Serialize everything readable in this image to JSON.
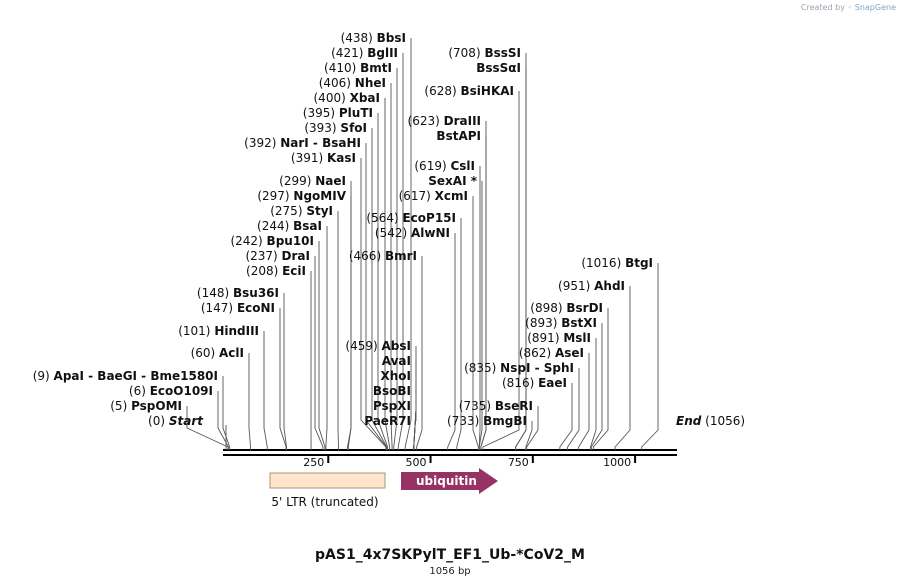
{
  "brand": {
    "prefix": "Created by",
    "name": "SnapGene",
    "icon": "snapgene-logo-icon"
  },
  "plasmid": {
    "name": "pAS1_4x7SKPylT_EF1_Ub-*CoV2_M",
    "length_label": "1056 bp",
    "length": 1056
  },
  "axis": {
    "ticks": [
      250,
      500,
      750,
      1000
    ]
  },
  "features": [
    {
      "name": "5' LTR (truncated)",
      "start": 115,
      "end": 385,
      "type": "box",
      "color": "#fde6cc",
      "label_pos": "below"
    },
    {
      "name": "ubiquitin",
      "start": 418,
      "end": 646,
      "type": "arrow",
      "color": "#963264",
      "label_pos": "inside"
    }
  ],
  "sites": [
    {
      "pos": "(0)",
      "name": "Start",
      "italic": true,
      "bp": 0
    },
    {
      "pos": "(5)",
      "name": "PspOMI",
      "bp": 5
    },
    {
      "pos": "(6)",
      "name": "EcoO109I",
      "bp": 6
    },
    {
      "pos": "(9)",
      "name": "ApaI  -  BaeGI  -  Bme1580I",
      "bp": 9
    },
    {
      "pos": "(60)",
      "name": "AclI",
      "bp": 60
    },
    {
      "pos": "(101)",
      "name": "HindIII",
      "bp": 101
    },
    {
      "pos": "(147)",
      "name": "EcoNI",
      "bp": 147
    },
    {
      "pos": "(148)",
      "name": "Bsu36I",
      "bp": 148
    },
    {
      "pos": "(208)",
      "name": "EciI",
      "bp": 208
    },
    {
      "pos": "(237)",
      "name": "DraI",
      "bp": 237
    },
    {
      "pos": "(242)",
      "name": "Bpu10I",
      "bp": 242
    },
    {
      "pos": "(244)",
      "name": "BsaI",
      "bp": 244
    },
    {
      "pos": "(275)",
      "name": "StyI",
      "bp": 275
    },
    {
      "pos": "(297)",
      "name": "NgoMIV",
      "bp": 297
    },
    {
      "pos": "(299)",
      "name": "NaeI",
      "bp": 299
    },
    {
      "pos": "(391)",
      "name": "KasI",
      "bp": 391
    },
    {
      "pos": "(392)",
      "name": "NarI  -  BsaHI",
      "bp": 392
    },
    {
      "pos": "(393)",
      "name": "SfoI",
      "bp": 393
    },
    {
      "pos": "(395)",
      "name": "PluTI",
      "bp": 395
    },
    {
      "pos": "(400)",
      "name": "XbaI",
      "bp": 400
    },
    {
      "pos": "(406)",
      "name": "NheI",
      "bp": 406
    },
    {
      "pos": "(410)",
      "name": "BmtI",
      "bp": 410
    },
    {
      "pos": "(421)",
      "name": "BglII",
      "bp": 421
    },
    {
      "pos": "(438)",
      "name": "BbsI",
      "bp": 438
    },
    {
      "pos": "(459)",
      "name": "AbsI",
      "bp": 459
    },
    {
      "pos": "",
      "name": "AvaI",
      "bp": 459
    },
    {
      "pos": "",
      "name": "XhoI",
      "bp": 459
    },
    {
      "pos": "",
      "name": "BsoBI",
      "bp": 459
    },
    {
      "pos": "",
      "name": "PspXI",
      "bp": 459
    },
    {
      "pos": "",
      "name": "PaeR7I",
      "bp": 459
    },
    {
      "pos": "(466)",
      "name": "BmrI",
      "bp": 466
    },
    {
      "pos": "(542)",
      "name": "AlwNI",
      "bp": 542
    },
    {
      "pos": "(564)",
      "name": "EcoP15I",
      "bp": 564
    },
    {
      "pos": "(617)",
      "name": "XcmI",
      "bp": 617
    },
    {
      "pos": "",
      "name": "SexAI *",
      "bp": 619
    },
    {
      "pos": "(619)",
      "name": "CslI",
      "bp": 619
    },
    {
      "pos": "",
      "name": "BstAPI",
      "bp": 623
    },
    {
      "pos": "(623)",
      "name": "DraIII",
      "bp": 623
    },
    {
      "pos": "(628)",
      "name": "BsiHKAI",
      "bp": 628
    },
    {
      "pos": "",
      "name": "BssSαI",
      "bp": 708
    },
    {
      "pos": "(708)",
      "name": "BssSI",
      "bp": 708
    },
    {
      "pos": "(733)",
      "name": "BmgBI",
      "bp": 733
    },
    {
      "pos": "(735)",
      "name": "BseRI",
      "bp": 735
    },
    {
      "pos": "(816)",
      "name": "EaeI",
      "bp": 816
    },
    {
      "pos": "(835)",
      "name": "NspI  -  SphI",
      "bp": 835
    },
    {
      "pos": "(862)",
      "name": "AseI",
      "bp": 862
    },
    {
      "pos": "(891)",
      "name": "MslI",
      "bp": 891
    },
    {
      "pos": "(893)",
      "name": "BstXI",
      "bp": 893
    },
    {
      "pos": "(898)",
      "name": "BsrDI",
      "bp": 898
    },
    {
      "pos": "(951)",
      "name": "AhdI",
      "bp": 951
    },
    {
      "pos": "(1016)",
      "name": "BtgI",
      "bp": 1016
    },
    {
      "pos": "(1056)",
      "name": "End",
      "italic": true,
      "bp": 1056
    }
  ]
}
